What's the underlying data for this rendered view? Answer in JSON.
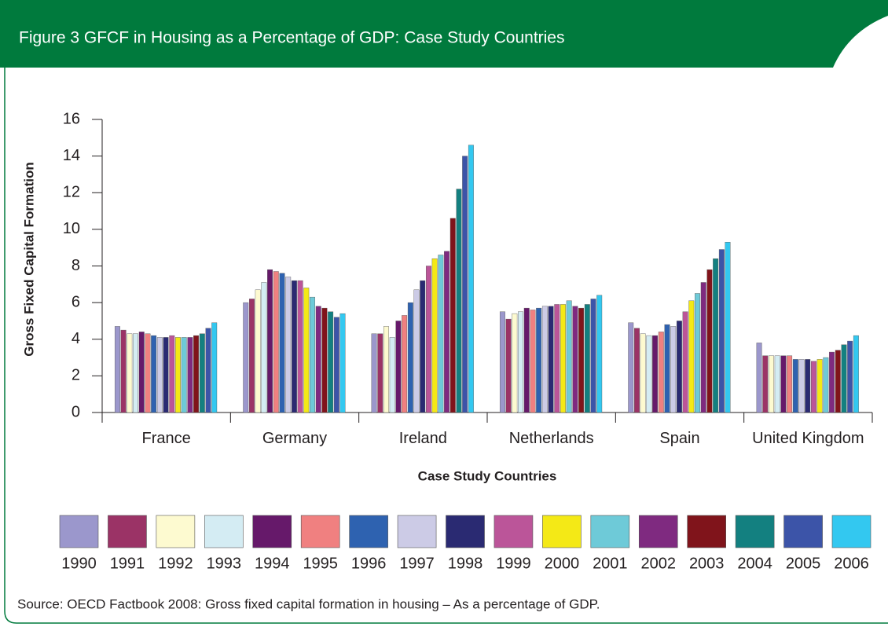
{
  "chart_data": {
    "type": "bar",
    "title": "Figure 3  GFCF in Housing as a Percentage of GDP: Case Study Countries",
    "y_label": "Gross Fixed Capital Formation",
    "x_label": "Case Study Countries",
    "source": "Source: OECD Factbook 2008: Gross fixed capital formation in housing – As a percentage of GDP.",
    "categories": [
      "France",
      "Germany",
      "Ireland",
      "Netherlands",
      "Spain",
      "United Kingdom"
    ],
    "ylim": [
      0,
      16
    ],
    "yticks": [
      0,
      2,
      4,
      6,
      8,
      10,
      12,
      14,
      16
    ],
    "series": [
      {
        "name": "1990",
        "color": "#9b97cc",
        "values": [
          4.7,
          6.0,
          4.3,
          5.5,
          4.9,
          3.8
        ]
      },
      {
        "name": "1991",
        "color": "#9b3366",
        "values": [
          4.5,
          6.2,
          4.3,
          5.1,
          4.6,
          3.1
        ]
      },
      {
        "name": "1992",
        "color": "#fdfad0",
        "values": [
          4.3,
          6.7,
          4.7,
          5.4,
          4.3,
          3.1
        ]
      },
      {
        "name": "1993",
        "color": "#d4ecf3",
        "values": [
          4.3,
          7.1,
          4.1,
          5.5,
          4.2,
          3.1
        ]
      },
      {
        "name": "1994",
        "color": "#66196a",
        "values": [
          4.4,
          7.8,
          5.0,
          5.7,
          4.2,
          3.1
        ]
      },
      {
        "name": "1995",
        "color": "#f08080",
        "values": [
          4.3,
          7.7,
          5.3,
          5.6,
          4.4,
          3.1
        ]
      },
      {
        "name": "1996",
        "color": "#2e62b0",
        "values": [
          4.2,
          7.6,
          6.0,
          5.7,
          4.8,
          2.9
        ]
      },
      {
        "name": "1997",
        "color": "#cccbe6",
        "values": [
          4.1,
          7.4,
          6.7,
          5.8,
          4.7,
          2.9
        ]
      },
      {
        "name": "1998",
        "color": "#2a2a72",
        "values": [
          4.1,
          7.2,
          7.2,
          5.8,
          5.0,
          2.9
        ]
      },
      {
        "name": "1999",
        "color": "#bb5599",
        "values": [
          4.2,
          7.2,
          8.0,
          5.9,
          5.5,
          2.8
        ]
      },
      {
        "name": "2000",
        "color": "#f4e916",
        "values": [
          4.1,
          6.8,
          8.4,
          5.9,
          6.1,
          2.9
        ]
      },
      {
        "name": "2001",
        "color": "#6ecad8",
        "values": [
          4.1,
          6.3,
          8.6,
          6.1,
          6.5,
          3.0
        ]
      },
      {
        "name": "2002",
        "color": "#7f2a80",
        "values": [
          4.1,
          5.8,
          8.8,
          5.8,
          7.1,
          3.3
        ]
      },
      {
        "name": "2003",
        "color": "#80141b",
        "values": [
          4.2,
          5.7,
          10.6,
          5.7,
          7.8,
          3.4
        ]
      },
      {
        "name": "2004",
        "color": "#138080",
        "values": [
          4.3,
          5.5,
          12.2,
          5.9,
          8.4,
          3.7
        ]
      },
      {
        "name": "2005",
        "color": "#3c54a8",
        "values": [
          4.6,
          5.2,
          14.0,
          6.2,
          8.9,
          3.9
        ]
      },
      {
        "name": "2006",
        "color": "#33c8f0",
        "values": [
          4.9,
          5.4,
          14.6,
          6.4,
          9.3,
          4.2
        ]
      }
    ]
  }
}
